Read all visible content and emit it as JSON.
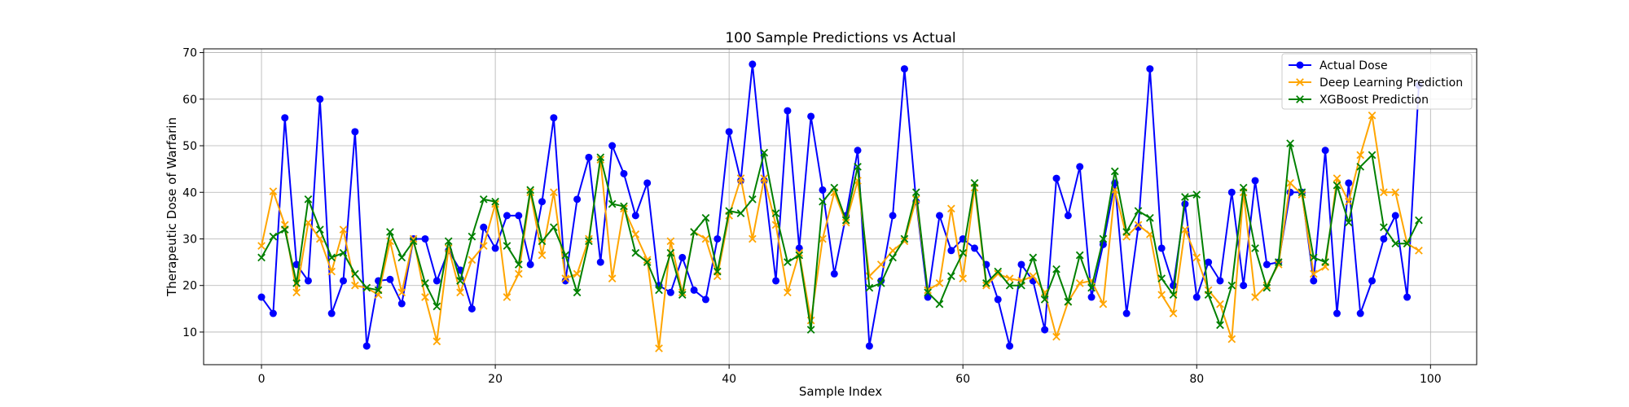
{
  "chart_data": {
    "type": "line",
    "title": "100 Sample Predictions vs Actual",
    "xlabel": "Sample Index",
    "ylabel": "Therapeutic Dose of Warfarin",
    "xlim": [
      -4.95,
      103.95
    ],
    "ylim": [
      3.0,
      70.8
    ],
    "xticks": [
      0,
      20,
      40,
      60,
      80,
      100
    ],
    "yticks": [
      10,
      20,
      30,
      40,
      50,
      60,
      70
    ],
    "grid": true,
    "legend_position": "top-right",
    "x": [
      0,
      1,
      2,
      3,
      4,
      5,
      6,
      7,
      8,
      9,
      10,
      11,
      12,
      13,
      14,
      15,
      16,
      17,
      18,
      19,
      20,
      21,
      22,
      23,
      24,
      25,
      26,
      27,
      28,
      29,
      30,
      31,
      32,
      33,
      34,
      35,
      36,
      37,
      38,
      39,
      40,
      41,
      42,
      43,
      44,
      45,
      46,
      47,
      48,
      49,
      50,
      51,
      52,
      53,
      54,
      55,
      56,
      57,
      58,
      59,
      60,
      61,
      62,
      63,
      64,
      65,
      66,
      67,
      68,
      69,
      70,
      71,
      72,
      73,
      74,
      75,
      76,
      77,
      78,
      79,
      80,
      81,
      82,
      83,
      84,
      85,
      86,
      87,
      88,
      89,
      90,
      91,
      92,
      93,
      94,
      95,
      96,
      97,
      98,
      99
    ],
    "series": [
      {
        "name": "Actual Dose",
        "color": "#0000ff",
        "marker": "circle",
        "values": [
          17.5,
          14.0,
          56.0,
          24.5,
          21.0,
          60.0,
          14.0,
          21.0,
          53.0,
          7.0,
          21.0,
          21.3,
          16.1,
          30.0,
          30.0,
          21.0,
          27.5,
          23.3,
          15.0,
          32.5,
          28.0,
          35.0,
          35.0,
          24.5,
          38.0,
          56.0,
          21.0,
          38.5,
          47.5,
          25.0,
          50.0,
          44.0,
          35.0,
          42.0,
          20.0,
          18.5,
          26.0,
          19.0,
          17.0,
          30.0,
          53.0,
          42.5,
          67.5,
          42.5,
          21.0,
          57.5,
          28.0,
          56.3,
          40.5,
          22.5,
          35.0,
          49.0,
          7.0,
          21.0,
          35.0,
          66.5,
          38.0,
          17.5,
          35.0,
          27.5,
          30.0,
          28.0,
          24.5,
          17.0,
          7.0,
          24.5,
          21.0,
          10.5,
          43.0,
          35.0,
          45.5,
          17.5,
          28.8,
          42.0,
          14.0,
          32.5,
          66.5,
          28.0,
          20.0,
          37.5,
          17.5,
          25.0,
          21.0,
          40.0,
          20.0,
          42.5,
          24.5,
          25.0,
          40.0,
          40.0,
          21.0,
          49.0,
          14.0,
          42.0,
          14.0,
          21.0,
          30.0,
          35.0,
          17.5,
          63.0
        ]
      },
      {
        "name": "Deep Learning Prediction",
        "color": "#ffa500",
        "marker": "x",
        "values": [
          28.5,
          40.2,
          33.0,
          18.5,
          33.5,
          30.0,
          23.0,
          32.0,
          20.0,
          19.5,
          18.0,
          29.5,
          18.5,
          30.0,
          17.5,
          8.0,
          28.0,
          18.5,
          25.5,
          28.5,
          37.5,
          17.5,
          22.5,
          40.0,
          26.5,
          40.0,
          21.5,
          22.5,
          30.0,
          47.0,
          21.5,
          36.5,
          31.0,
          25.5,
          6.5,
          29.5,
          18.5,
          31.5,
          30.0,
          22.0,
          35.0,
          43.0,
          30.0,
          43.0,
          33.0,
          18.5,
          27.0,
          12.5,
          30.0,
          40.0,
          33.5,
          42.5,
          22.0,
          24.5,
          27.5,
          29.5,
          38.5,
          19.0,
          20.5,
          36.5,
          21.5,
          41.0,
          20.0,
          22.5,
          21.5,
          21.0,
          22.0,
          18.5,
          9.0,
          16.5,
          20.5,
          21.0,
          16.0,
          40.5,
          30.5,
          33.0,
          31.0,
          18.0,
          14.0,
          32.0,
          26.0,
          19.0,
          16.0,
          8.5,
          40.0,
          17.5,
          20.0,
          24.5,
          42.0,
          39.5,
          22.5,
          24.0,
          43.0,
          38.0,
          48.0,
          56.5,
          40.0,
          40.0,
          29.0,
          27.5
        ]
      },
      {
        "name": "XGBoost Prediction",
        "color": "#008000",
        "marker": "x",
        "values": [
          26.0,
          30.5,
          32.0,
          20.5,
          38.5,
          32.0,
          26.0,
          27.0,
          22.5,
          19.5,
          19.0,
          31.5,
          26.0,
          29.5,
          20.5,
          15.5,
          29.5,
          21.0,
          30.5,
          38.5,
          38.0,
          28.5,
          24.5,
          40.5,
          29.5,
          32.5,
          26.5,
          18.5,
          29.5,
          47.5,
          37.5,
          37.0,
          27.0,
          25.0,
          19.0,
          27.0,
          18.0,
          31.5,
          34.5,
          23.0,
          36.0,
          35.5,
          38.5,
          48.5,
          35.5,
          25.0,
          26.5,
          10.5,
          38.0,
          41.0,
          34.0,
          45.5,
          19.5,
          20.5,
          26.0,
          30.0,
          40.0,
          18.5,
          16.0,
          22.0,
          27.0,
          42.0,
          20.5,
          23.0,
          20.0,
          20.0,
          26.0,
          17.0,
          23.5,
          16.5,
          26.5,
          19.5,
          30.0,
          44.5,
          31.5,
          36.0,
          34.5,
          21.5,
          18.0,
          39.0,
          39.5,
          18.0,
          11.5,
          20.0,
          41.0,
          28.0,
          19.5,
          25.0,
          50.5,
          40.0,
          26.0,
          25.0,
          41.5,
          33.5,
          45.5,
          48.0,
          32.5,
          29.0,
          29.0,
          34.0
        ]
      }
    ]
  }
}
